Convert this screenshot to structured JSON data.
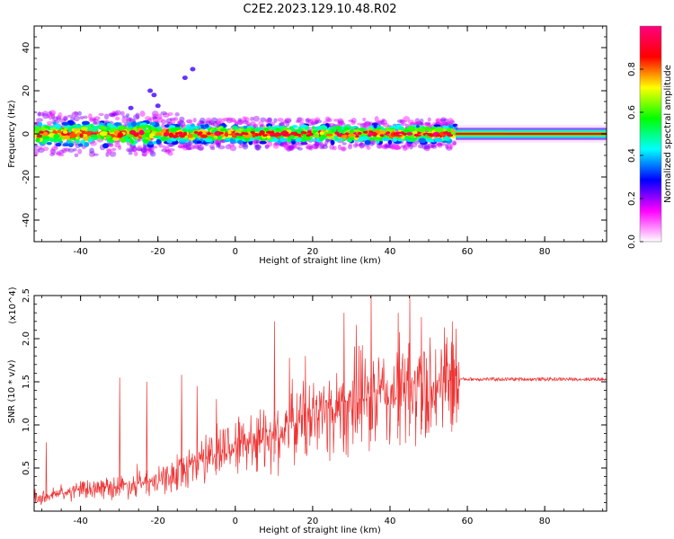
{
  "title": "C2E2.2023.129.10.48.R02",
  "spectrogram": {
    "type": "heatmap",
    "xlabel": "Height of straight line (km)",
    "ylabel": "Frequency (Hz)",
    "xlim": [
      -52,
      96
    ],
    "ylim": [
      -50,
      50
    ],
    "xticks": [
      -40,
      -20,
      0,
      20,
      40,
      60,
      80
    ],
    "yticks": [
      -40,
      -20,
      0,
      20,
      40
    ],
    "colorbar": {
      "label": "Normalized spectral amplitude",
      "range": [
        0,
        1
      ],
      "ticks": [
        "0.0",
        "0.2",
        "0.4",
        "0.6",
        "0.8"
      ],
      "colormap": [
        "#ffffff",
        "#ff00ff",
        "#0000ff",
        "#00ffff",
        "#00ff00",
        "#ffff00",
        "#ff0000",
        "#ff0080"
      ]
    },
    "band": {
      "noisy_segment_km": [
        -52,
        57
      ],
      "steady_segment_km": [
        57,
        96
      ],
      "center_hz": 0,
      "noisy_halfwidth_hz": 6,
      "steady_halfwidth_hz": 1.5,
      "outliers_hz": [
        {
          "x": -22,
          "y": 20
        },
        {
          "x": -21,
          "y": 18
        },
        {
          "x": -20,
          "y": 13
        },
        {
          "x": -13,
          "y": 26
        },
        {
          "x": -11,
          "y": 30
        },
        {
          "x": -27,
          "y": 12
        }
      ]
    }
  },
  "chart_data": {
    "type": "line",
    "xlabel": "Height of straight line (km)",
    "ylabel": "SNR (10 * v/v)",
    "ymultiplier": "(x10^4)",
    "xlim": [
      -52,
      96
    ],
    "ylim": [
      0,
      2.5
    ],
    "xticks": [
      -40,
      -20,
      0,
      20,
      40,
      60,
      80
    ],
    "yticks": [
      "0.5",
      "1.0",
      "1.5",
      "2.0",
      "2.5"
    ],
    "color": "#ee3333",
    "trend_x": [
      -52,
      -40,
      -30,
      -20,
      -15,
      -10,
      -5,
      0,
      5,
      10,
      15,
      20,
      25,
      30,
      35,
      40,
      45,
      50,
      55,
      57
    ],
    "trend_y": [
      0.15,
      0.25,
      0.3,
      0.35,
      0.45,
      0.6,
      0.7,
      0.8,
      0.85,
      0.95,
      1.05,
      1.15,
      1.2,
      1.3,
      1.35,
      1.38,
      1.45,
      1.5,
      1.52,
      1.55
    ],
    "steady_level": 1.53,
    "steady_start_x": 58,
    "peaks": [
      {
        "x": -49,
        "y": 0.8
      },
      {
        "x": -30,
        "y": 1.55
      },
      {
        "x": -23,
        "y": 1.5
      },
      {
        "x": -14,
        "y": 1.58
      },
      {
        "x": -10,
        "y": 1.45
      },
      {
        "x": -5,
        "y": 1.3
      },
      {
        "x": 10,
        "y": 2.2
      },
      {
        "x": 18,
        "y": 1.8
      },
      {
        "x": 28,
        "y": 2.3
      },
      {
        "x": 35,
        "y": 2.5
      },
      {
        "x": 42,
        "y": 2.3
      },
      {
        "x": 45,
        "y": 2.5
      },
      {
        "x": 48,
        "y": 2.25
      },
      {
        "x": 56,
        "y": 2.2
      }
    ]
  }
}
